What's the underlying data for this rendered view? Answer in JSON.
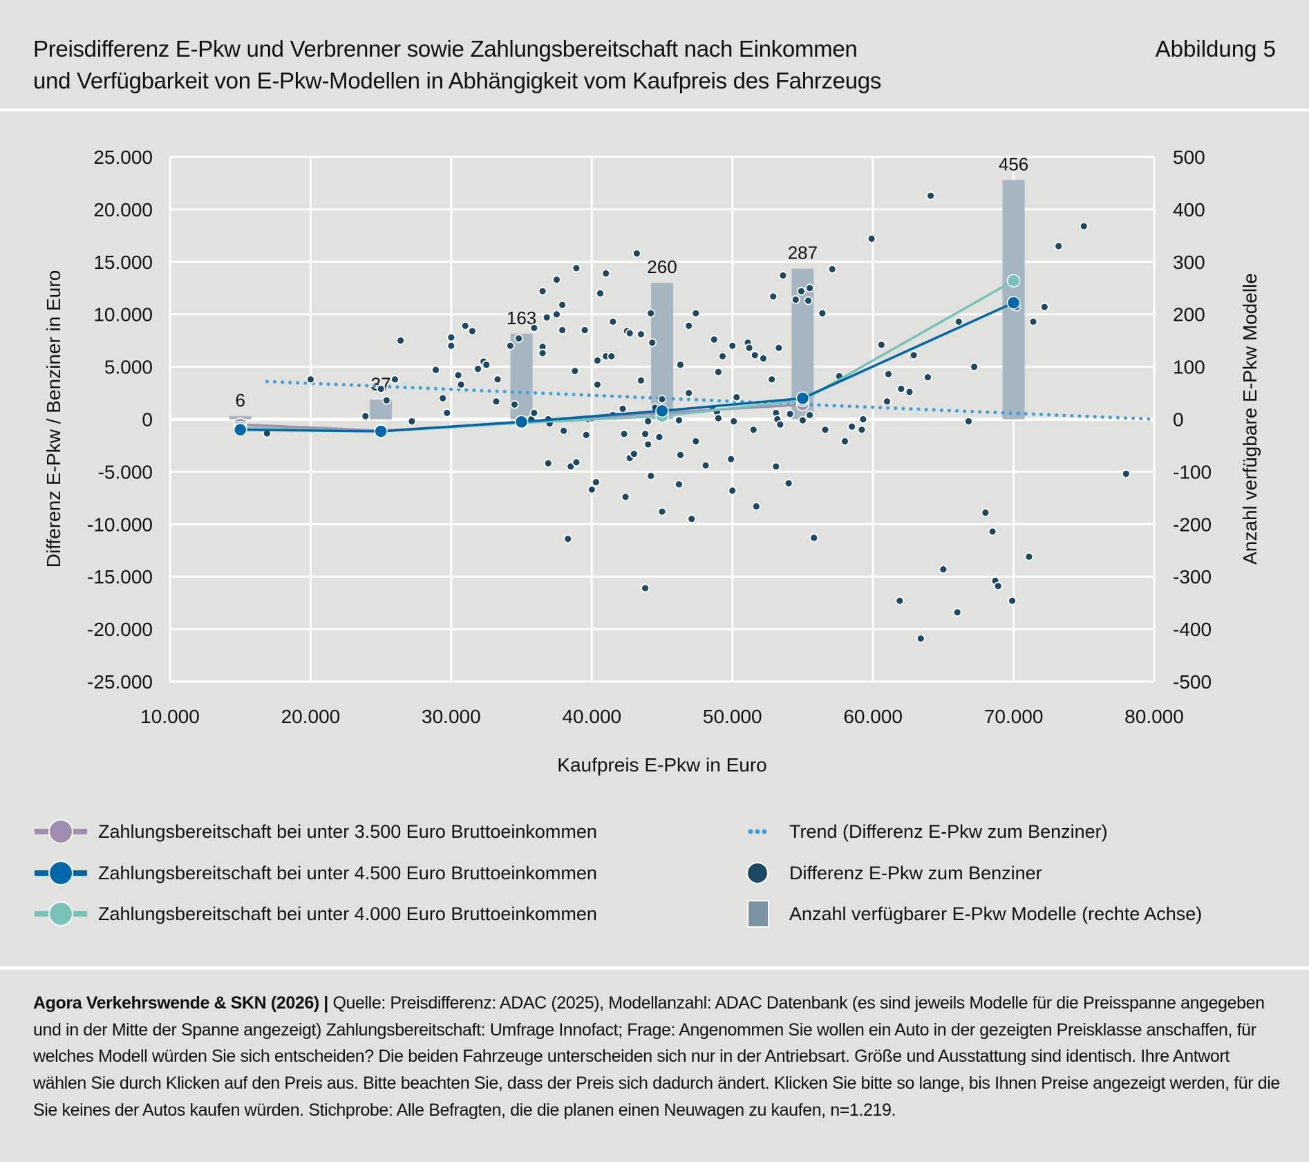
{
  "header": {
    "title_line1": "Preisdifferenz E-Pkw und Verbrenner sowie Zahlungsbereitschaft nach Einkommen",
    "title_line2": "und Verfügbarkeit von E-Pkw-Modellen in Abhängigkeit vom Kaufpreis des Fahrzeugs",
    "figure_label": "Abbildung 5"
  },
  "chart_data": {
    "type": "scatter",
    "xlabel": "Kaufpreis E-Pkw in Euro",
    "ylabel": "Differenz E-Pkw / Benziner in Euro",
    "y2label": "Anzahl verfügbare E-Pkw Modelle",
    "xlim": [
      10000,
      80000
    ],
    "ylim": [
      -25000,
      25000
    ],
    "y2lim": [
      -500,
      500
    ],
    "grid": true,
    "x_ticks": [
      10000,
      20000,
      30000,
      40000,
      50000,
      60000,
      70000,
      80000
    ],
    "x_tick_labels": [
      "10.000",
      "20.000",
      "30.000",
      "40.000",
      "50.000",
      "60.000",
      "70.000",
      "80.000"
    ],
    "y_ticks": [
      25000,
      20000,
      15000,
      10000,
      5000,
      0,
      -5000,
      -10000,
      -15000,
      -20000,
      -25000
    ],
    "y_tick_labels": [
      "25.000",
      "20.000",
      "15.000",
      "10.000",
      "5.000",
      "0",
      "-5.000",
      "-10.000",
      "-15.000",
      "-20.000",
      "-25.000"
    ],
    "y2_ticks": [
      500,
      400,
      300,
      200,
      100,
      0,
      -100,
      -200,
      -300,
      -400,
      -500
    ],
    "y2_tick_labels": [
      "500",
      "400",
      "300",
      "200",
      "100",
      "0",
      "-100",
      "-200",
      "-300",
      "-400",
      "-500"
    ],
    "colors": {
      "bars": "#a5b5c1",
      "legend_bar": "#7a92a2",
      "trend": "#3a9fdc",
      "points": "#1c4863",
      "s3500": "#a18daf",
      "s4500": "#0068a8",
      "s4000": "#78c2b9",
      "grid": "#ffffff"
    },
    "bars": {
      "name": "Anzahl verfügbarer E-Pkw Modelle (rechte Achse)",
      "x": [
        15000,
        25000,
        35000,
        45000,
        55000,
        70000
      ],
      "values": [
        6,
        37,
        163,
        260,
        287,
        456
      ],
      "labels": [
        "6",
        "37",
        "163",
        "260",
        "287",
        "456"
      ]
    },
    "lines": [
      {
        "name": "Zahlungsbereitschaft bei unter 3.500 Euro Bruttoeinkommen",
        "color_key": "s3500",
        "x": [
          15000,
          25000,
          35000,
          45000,
          55000
        ],
        "y": [
          -500,
          -1100,
          -300,
          600,
          1400
        ]
      },
      {
        "name": "Zahlungsbereitschaft bei unter 4.000 Euro Bruttoeinkommen",
        "color_key": "s4000",
        "x": [
          15000,
          25000,
          35000,
          45000,
          55000,
          70000
        ],
        "y": [
          -800,
          -1150,
          -350,
          300,
          1800,
          13200
        ]
      },
      {
        "name": "Zahlungsbereitschaft bei unter 4.500 Euro Bruttoeinkommen",
        "color_key": "s4500",
        "x": [
          15000,
          25000,
          35000,
          45000,
          55000,
          70000
        ],
        "y": [
          -1000,
          -1150,
          -250,
          800,
          2000,
          11100
        ]
      }
    ],
    "trend": {
      "name": "Trend (Differenz E-Pkw zum Benziner)",
      "x": [
        16900,
        80000
      ],
      "y": [
        3600,
        0
      ]
    },
    "points": {
      "name": "Differenz E-Pkw zum Benziner",
      "xy": [
        [
          20000,
          3800
        ],
        [
          16900,
          -1350
        ],
        [
          23900,
          300
        ],
        [
          25000,
          2900
        ],
        [
          25400,
          1800
        ],
        [
          26000,
          3800
        ],
        [
          26400,
          7500
        ],
        [
          27200,
          -200
        ],
        [
          28900,
          4700
        ],
        [
          29400,
          2000
        ],
        [
          29700,
          600
        ],
        [
          30000,
          7800
        ],
        [
          30000,
          7000
        ],
        [
          30500,
          4200
        ],
        [
          30700,
          3300
        ],
        [
          31000,
          8900
        ],
        [
          31500,
          8400
        ],
        [
          31900,
          4800
        ],
        [
          32300,
          5500
        ],
        [
          32500,
          5200
        ],
        [
          33300,
          3800
        ],
        [
          33200,
          1700
        ],
        [
          34200,
          7000
        ],
        [
          34500,
          1400
        ],
        [
          34800,
          7700
        ],
        [
          35200,
          -100
        ],
        [
          35700,
          0
        ],
        [
          35900,
          600
        ],
        [
          35900,
          8700
        ],
        [
          36500,
          6900
        ],
        [
          36500,
          6300
        ],
        [
          36500,
          12200
        ],
        [
          36900,
          0
        ],
        [
          37000,
          -400
        ],
        [
          36800,
          9700
        ],
        [
          36900,
          -4200
        ],
        [
          37500,
          13300
        ],
        [
          37500,
          10000
        ],
        [
          37900,
          10900
        ],
        [
          37900,
          8500
        ],
        [
          38000,
          -1100
        ],
        [
          38300,
          -11400
        ],
        [
          38500,
          -4500
        ],
        [
          38900,
          14400
        ],
        [
          38800,
          4600
        ],
        [
          38900,
          -4100
        ],
        [
          39500,
          8500
        ],
        [
          39600,
          -1500
        ],
        [
          39800,
          0
        ],
        [
          40000,
          100
        ],
        [
          40000,
          -6700
        ],
        [
          40300,
          -6000
        ],
        [
          40400,
          3300
        ],
        [
          40600,
          12000
        ],
        [
          40400,
          5600
        ],
        [
          41000,
          13900
        ],
        [
          41000,
          6000
        ],
        [
          41400,
          6000
        ],
        [
          41500,
          9300
        ],
        [
          41500,
          400
        ],
        [
          42200,
          1000
        ],
        [
          42300,
          -1400
        ],
        [
          42400,
          -7400
        ],
        [
          42500,
          8400
        ],
        [
          42700,
          8200
        ],
        [
          42700,
          -3700
        ],
        [
          43000,
          -3300
        ],
        [
          43200,
          15800
        ],
        [
          43500,
          8100
        ],
        [
          43500,
          3700
        ],
        [
          43800,
          -16100
        ],
        [
          43800,
          -1400
        ],
        [
          44000,
          -2400
        ],
        [
          44000,
          -200
        ],
        [
          44200,
          -5400
        ],
        [
          44200,
          10100
        ],
        [
          44300,
          7300
        ],
        [
          44500,
          1100
        ],
        [
          44800,
          -1700
        ],
        [
          45000,
          -8800
        ],
        [
          45000,
          1900
        ],
        [
          46200,
          -100
        ],
        [
          46200,
          -6200
        ],
        [
          46300,
          5200
        ],
        [
          46300,
          -3400
        ],
        [
          46900,
          2500
        ],
        [
          46900,
          8900
        ],
        [
          47100,
          -9500
        ],
        [
          47400,
          10100
        ],
        [
          47400,
          -2100
        ],
        [
          48100,
          -4400
        ],
        [
          48600,
          1000
        ],
        [
          48700,
          7600
        ],
        [
          48900,
          700
        ],
        [
          49000,
          4500
        ],
        [
          49000,
          100
        ],
        [
          49300,
          6000
        ],
        [
          50000,
          7000
        ],
        [
          49900,
          -3800
        ],
        [
          50000,
          -6800
        ],
        [
          50100,
          -200
        ],
        [
          50300,
          2100
        ],
        [
          51100,
          7300
        ],
        [
          51200,
          6800
        ],
        [
          51500,
          -1000
        ],
        [
          51600,
          6100
        ],
        [
          51700,
          -8300
        ],
        [
          52200,
          5800
        ],
        [
          52800,
          3800
        ],
        [
          52900,
          11700
        ],
        [
          53100,
          -4500
        ],
        [
          53100,
          600
        ],
        [
          53200,
          0
        ],
        [
          53400,
          -500
        ],
        [
          53300,
          6800
        ],
        [
          53600,
          13700
        ],
        [
          54000,
          -6100
        ],
        [
          54100,
          500
        ],
        [
          54500,
          11400
        ],
        [
          54900,
          12200
        ],
        [
          55000,
          -100
        ],
        [
          55500,
          12500
        ],
        [
          55400,
          11300
        ],
        [
          55500,
          400
        ],
        [
          55800,
          -11300
        ],
        [
          56400,
          10100
        ],
        [
          56600,
          -1000
        ],
        [
          57100,
          14300
        ],
        [
          57600,
          4100
        ],
        [
          58000,
          -2100
        ],
        [
          58500,
          -700
        ],
        [
          59200,
          -1000
        ],
        [
          59300,
          0
        ],
        [
          59900,
          17200
        ],
        [
          60600,
          7100
        ],
        [
          61000,
          1700
        ],
        [
          61100,
          4300
        ],
        [
          61900,
          -17300
        ],
        [
          62000,
          2900
        ],
        [
          62600,
          2600
        ],
        [
          62800,
          6000
        ],
        [
          62900,
          6100
        ],
        [
          63400,
          -20900
        ],
        [
          63900,
          4000
        ],
        [
          64100,
          21300
        ],
        [
          65000,
          -14300
        ],
        [
          66000,
          -18400
        ],
        [
          66100,
          9300
        ],
        [
          66800,
          -200
        ],
        [
          67200,
          5000
        ],
        [
          68000,
          -8900
        ],
        [
          68500,
          -10700
        ],
        [
          68700,
          -15400
        ],
        [
          68900,
          -15900
        ],
        [
          69900,
          -17300
        ],
        [
          70000,
          10800
        ],
        [
          70200,
          10700
        ],
        [
          71400,
          9300
        ],
        [
          71100,
          -13100
        ],
        [
          72200,
          10700
        ],
        [
          73200,
          16500
        ],
        [
          75000,
          18400
        ],
        [
          78000,
          -5200
        ]
      ]
    }
  },
  "legend": {
    "left": [
      {
        "label": "Zahlungsbereitschaft bei unter 3.500 Euro Bruttoeinkommen",
        "color": "#a18daf"
      },
      {
        "label": "Zahlungsbereitschaft bei unter 4.500 Euro Bruttoeinkommen",
        "color": "#0068a8"
      },
      {
        "label": "Zahlungsbereitschaft bei unter 4.000 Euro Bruttoeinkommen",
        "color": "#78c2b9"
      }
    ],
    "right": [
      {
        "label": "Trend (Differenz E-Pkw zum Benziner)",
        "color": "#3a9fdc"
      },
      {
        "label": "Differenz E-Pkw zum Benziner",
        "color": "#1c4863"
      },
      {
        "label": "Anzahl verfügbarer E-Pkw Modelle (rechte Achse)",
        "color": "#7a92a2"
      }
    ]
  },
  "footer": {
    "source_bold": "Agora Verkehrswende & SKN (2026) |",
    "source_text": " Quelle: Preisdifferenz: ADAC (2025), Modellanzahl: ADAC Datenbank (es sind jeweils Modelle für die Preisspanne angegeben und in der Mitte der Spanne angezeigt) Zahlungsbereitschaft: Umfrage Innofact; Frage: Angenommen Sie wollen ein Auto in der gezeigten Preisklasse anschaffen, für welches Modell würden Sie sich entscheiden? Die beiden Fahrzeuge unterscheiden sich nur in der Antriebsart. Größe und Ausstattung sind identisch. Ihre Antwort wählen Sie durch Klicken auf den Preis aus. Bitte beachten Sie, dass der Preis sich dadurch ändert. Klicken Sie bitte so lange, bis Ihnen Preise angezeigt werden, für die Sie keines der Autos kaufen würden. Stichprobe: Alle Befragten, die die planen einen Neuwagen zu kaufen, n=1.219."
  }
}
